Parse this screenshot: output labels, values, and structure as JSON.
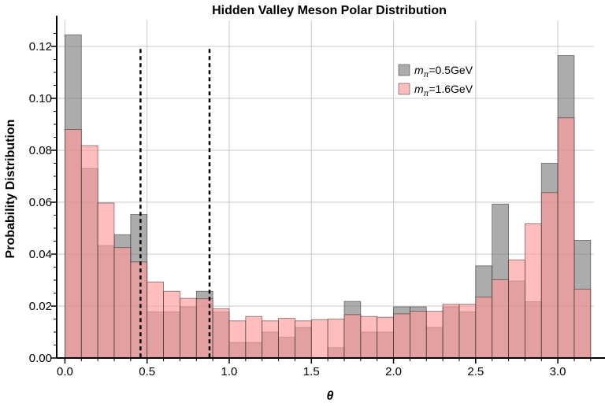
{
  "chart_data": {
    "type": "bar",
    "title": "Hidden Valley Meson Polar Distribution",
    "xlabel": "θ",
    "ylabel": "Probability Distribution",
    "xlim": [
      -0.05,
      3.22
    ],
    "ylim": [
      0,
      0.13
    ],
    "bin_width": 0.1,
    "bin_start": 0.0,
    "x_ticks": [
      0.0,
      0.5,
      1.0,
      1.5,
      2.0,
      2.5,
      3.0
    ],
    "x_tick_labels": [
      "0.0",
      "0.5",
      "1.0",
      "1.5",
      "2.0",
      "2.5",
      "3.0"
    ],
    "y_ticks": [
      0.0,
      0.02,
      0.04,
      0.06,
      0.08,
      0.1,
      0.12
    ],
    "y_tick_labels": [
      "0.00",
      "0.02",
      "0.04",
      "0.06",
      "0.08",
      "0.10",
      "0.12"
    ],
    "grid": true,
    "legend_position": "top-right",
    "vlines": [
      0.46,
      0.88
    ],
    "series": [
      {
        "name": "m_π=0.5GeV",
        "legend_symbol": "m",
        "legend_sub": "π",
        "legend_rest": "=0.5GeV",
        "color": "#7f7f7f",
        "values": [
          0.1245,
          0.073,
          0.0433,
          0.0475,
          0.0553,
          0.0178,
          0.0178,
          0.0197,
          0.0257,
          0.0178,
          0.006,
          0.006,
          0.01,
          0.008,
          0.0118,
          0.0,
          0.004,
          0.0218,
          0.01,
          0.01,
          0.0197,
          0.0197,
          0.0118,
          0.0197,
          0.0178,
          0.0355,
          0.0593,
          0.0297,
          0.0217,
          0.075,
          0.1165,
          0.0453
        ]
      },
      {
        "name": "m_π=1.6GeV",
        "legend_symbol": "m",
        "legend_sub": "π",
        "legend_rest": "=1.6GeV",
        "color": "#ff9999",
        "values": [
          0.088,
          0.0818,
          0.0597,
          0.0425,
          0.037,
          0.0293,
          0.0257,
          0.023,
          0.0228,
          0.019,
          0.0143,
          0.016,
          0.0143,
          0.0153,
          0.0143,
          0.0148,
          0.015,
          0.0167,
          0.016,
          0.0157,
          0.017,
          0.018,
          0.018,
          0.0207,
          0.0207,
          0.0235,
          0.0302,
          0.0378,
          0.0517,
          0.0637,
          0.0925,
          0.0265
        ]
      }
    ]
  }
}
